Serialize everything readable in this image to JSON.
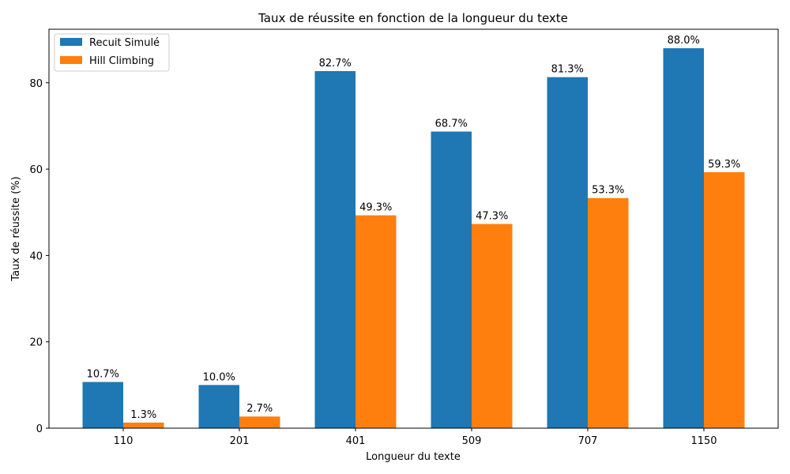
{
  "chart_data": {
    "type": "bar",
    "title": "Taux de réussite en fonction de la longueur du texte",
    "xlabel": "Longueur du texte",
    "ylabel": "Taux de réussite (%)",
    "categories": [
      "110",
      "201",
      "401",
      "509",
      "707",
      "1150"
    ],
    "ylim": [
      0,
      92.4
    ],
    "yticks": [
      0,
      20,
      40,
      60,
      80
    ],
    "grid": false,
    "legend_position": "top-left",
    "series": [
      {
        "name": "Recuit Simulé",
        "color": "#1f77b4",
        "values": [
          10.7,
          10.0,
          82.7,
          68.7,
          81.3,
          88.0
        ],
        "labels": [
          "10.7%",
          "10.0%",
          "82.7%",
          "68.7%",
          "81.3%",
          "88.0%"
        ]
      },
      {
        "name": "Hill Climbing",
        "color": "#ff7f0e",
        "values": [
          1.3,
          2.7,
          49.3,
          47.3,
          53.3,
          59.3
        ],
        "labels": [
          "1.3%",
          "2.7%",
          "49.3%",
          "47.3%",
          "53.3%",
          "59.3%"
        ]
      }
    ]
  }
}
